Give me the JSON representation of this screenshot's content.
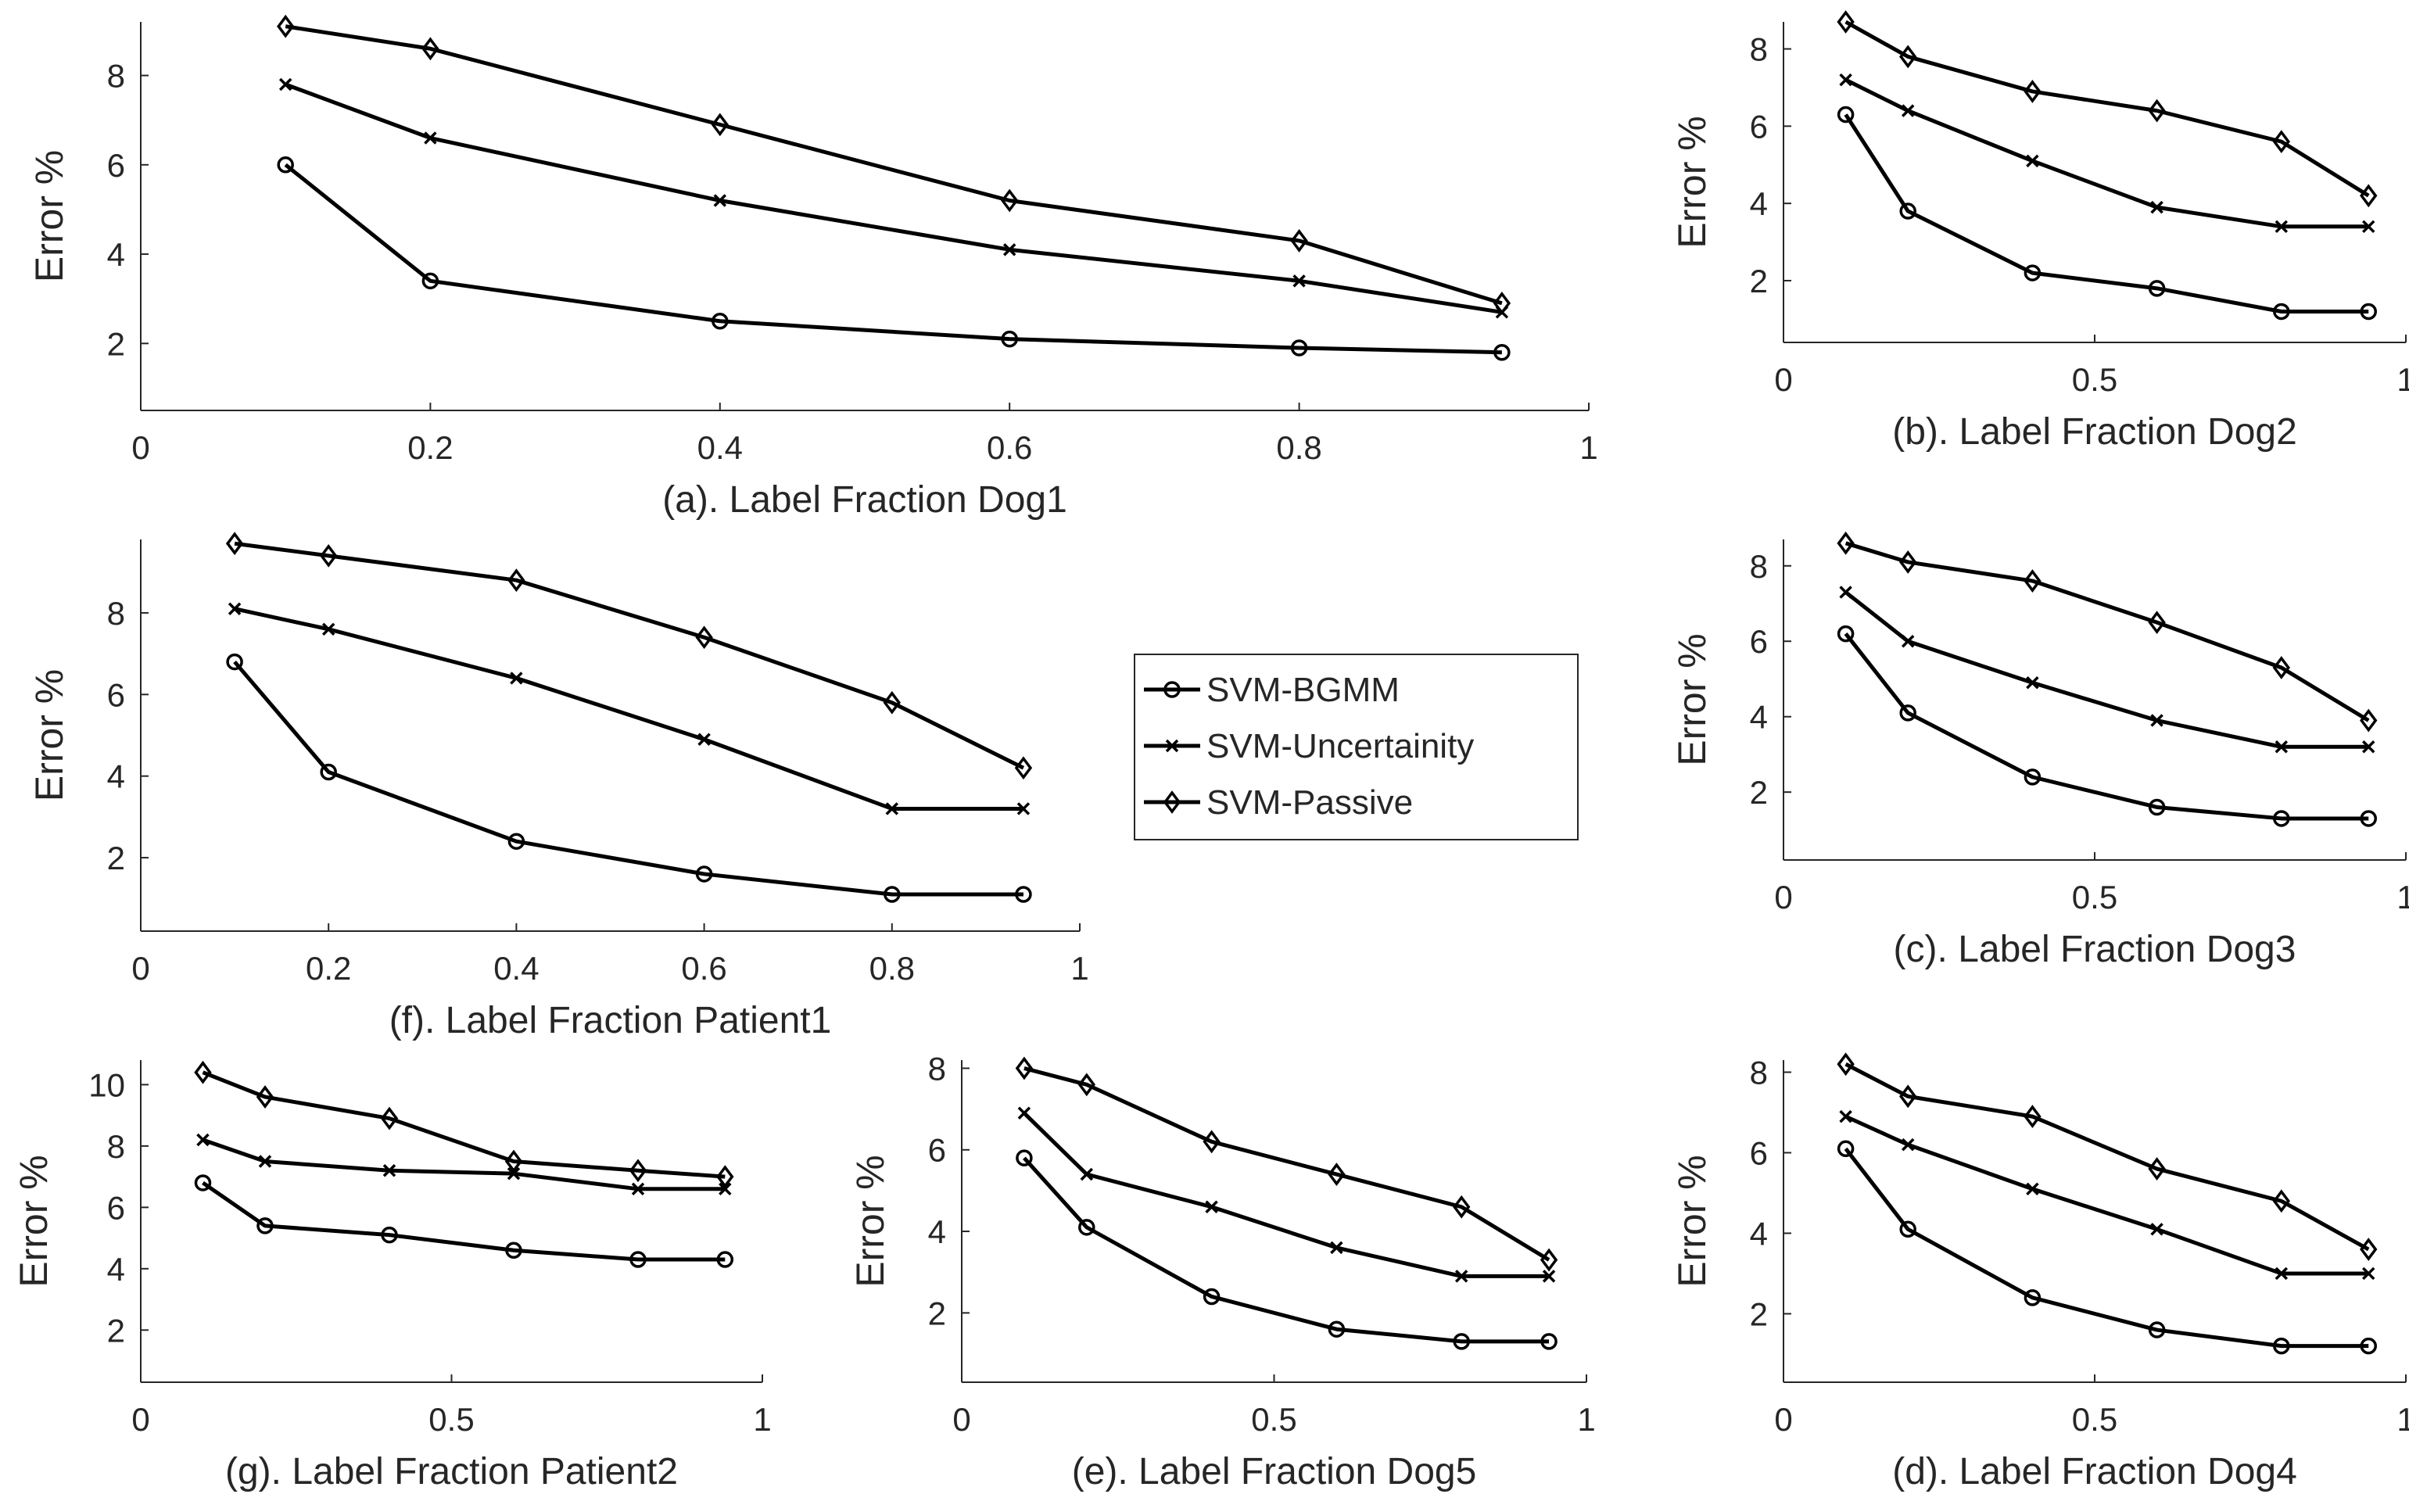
{
  "chart_data": [
    {
      "id": "a",
      "type": "line",
      "xlabel": "(a). Label Fraction Dog1",
      "ylabel": "Error %",
      "xlim": [
        0,
        1
      ],
      "ylim": [
        0.5,
        9.2
      ],
      "xticks": [
        0,
        0.2,
        0.4,
        0.6,
        0.8,
        1
      ],
      "xticklabels": [
        "0",
        "0.2",
        "0.4",
        "0.6",
        "0.8",
        "1"
      ],
      "yticks": [
        2,
        4,
        6,
        8
      ],
      "yticklabels": [
        "2",
        "4",
        "6",
        "8"
      ],
      "x": [
        0.1,
        0.2,
        0.4,
        0.6,
        0.8,
        0.94
      ],
      "series": [
        {
          "name": "SVM-BGMM",
          "marker": "circle",
          "values": [
            6.0,
            3.4,
            2.5,
            2.1,
            1.9,
            1.8
          ]
        },
        {
          "name": "SVM-Uncertainity",
          "marker": "x",
          "values": [
            7.8,
            6.6,
            5.2,
            4.1,
            3.4,
            2.7
          ]
        },
        {
          "name": "SVM-Passive",
          "marker": "diamond",
          "values": [
            9.1,
            8.6,
            6.9,
            5.2,
            4.3,
            2.9
          ]
        }
      ]
    },
    {
      "id": "b",
      "type": "line",
      "xlabel": "(b). Label Fraction Dog2",
      "ylabel": "Error %",
      "xlim": [
        0,
        1
      ],
      "ylim": [
        0.4,
        8.7
      ],
      "xticks": [
        0,
        0.5,
        1
      ],
      "xticklabels": [
        "0",
        "0.5",
        "1"
      ],
      "yticks": [
        2,
        4,
        6,
        8
      ],
      "yticklabels": [
        "2",
        "4",
        "6",
        "8"
      ],
      "x": [
        0.1,
        0.2,
        0.4,
        0.6,
        0.8,
        0.94
      ],
      "series": [
        {
          "name": "SVM-BGMM",
          "marker": "circle",
          "values": [
            6.3,
            3.8,
            2.2,
            1.8,
            1.2,
            1.2
          ]
        },
        {
          "name": "SVM-Uncertainity",
          "marker": "x",
          "values": [
            7.2,
            6.4,
            5.1,
            3.9,
            3.4,
            3.4
          ]
        },
        {
          "name": "SVM-Passive",
          "marker": "diamond",
          "values": [
            8.7,
            7.8,
            6.9,
            6.4,
            5.6,
            4.2
          ]
        }
      ]
    },
    {
      "id": "f",
      "type": "line",
      "xlabel": "(f). Label Fraction Patient1",
      "ylabel": "Error %",
      "xlim": [
        0,
        1
      ],
      "ylim": [
        0.2,
        9.8
      ],
      "xticks": [
        0,
        0.2,
        0.4,
        0.6,
        0.8,
        1
      ],
      "xticklabels": [
        "0",
        "0.2",
        "0.4",
        "0.6",
        "0.8",
        "1"
      ],
      "yticks": [
        2,
        4,
        6,
        8
      ],
      "yticklabels": [
        "2",
        "4",
        "6",
        "8"
      ],
      "x": [
        0.1,
        0.2,
        0.4,
        0.6,
        0.8,
        0.94
      ],
      "series": [
        {
          "name": "SVM-BGMM",
          "marker": "circle",
          "values": [
            6.8,
            4.1,
            2.4,
            1.6,
            1.1,
            1.1
          ]
        },
        {
          "name": "SVM-Uncertainity",
          "marker": "x",
          "values": [
            8.1,
            7.6,
            6.4,
            4.9,
            3.2,
            3.2
          ]
        },
        {
          "name": "SVM-Passive",
          "marker": "diamond",
          "values": [
            9.7,
            9.4,
            8.8,
            7.4,
            5.8,
            4.2
          ]
        }
      ]
    },
    {
      "id": "c",
      "type": "line",
      "xlabel": "(c). Label Fraction Dog3",
      "ylabel": "Error %",
      "xlim": [
        0,
        1
      ],
      "ylim": [
        0.2,
        8.7
      ],
      "xticks": [
        0,
        0.5,
        1
      ],
      "xticklabels": [
        "0",
        "0.5",
        "1"
      ],
      "yticks": [
        2,
        4,
        6,
        8
      ],
      "yticklabels": [
        "2",
        "4",
        "6",
        "8"
      ],
      "x": [
        0.1,
        0.2,
        0.4,
        0.6,
        0.8,
        0.94
      ],
      "series": [
        {
          "name": "SVM-BGMM",
          "marker": "circle",
          "values": [
            6.2,
            4.1,
            2.4,
            1.6,
            1.3,
            1.3
          ]
        },
        {
          "name": "SVM-Uncertainity",
          "marker": "x",
          "values": [
            7.3,
            6.0,
            4.9,
            3.9,
            3.2,
            3.2
          ]
        },
        {
          "name": "SVM-Passive",
          "marker": "diamond",
          "values": [
            8.6,
            8.1,
            7.6,
            6.5,
            5.3,
            3.9
          ]
        }
      ]
    },
    {
      "id": "g",
      "type": "line",
      "xlabel": "(g). Label Fraction Patient2",
      "ylabel": "Error %",
      "xlim": [
        0,
        1
      ],
      "ylim": [
        0.3,
        10.8
      ],
      "xticks": [
        0,
        0.5,
        1
      ],
      "xticklabels": [
        "0",
        "0.5",
        "1"
      ],
      "yticks": [
        2,
        4,
        6,
        8,
        10
      ],
      "yticklabels": [
        "2",
        "4",
        "6",
        "8",
        "10"
      ],
      "x": [
        0.1,
        0.2,
        0.4,
        0.6,
        0.8,
        0.94
      ],
      "series": [
        {
          "name": "SVM-BGMM",
          "marker": "circle",
          "values": [
            6.8,
            5.4,
            5.1,
            4.6,
            4.3,
            4.3
          ]
        },
        {
          "name": "SVM-Uncertainity",
          "marker": "x",
          "values": [
            8.2,
            7.5,
            7.2,
            7.1,
            6.6,
            6.6
          ]
        },
        {
          "name": "SVM-Passive",
          "marker": "diamond",
          "values": [
            10.4,
            9.6,
            8.9,
            7.5,
            7.2,
            7.0
          ]
        }
      ]
    },
    {
      "id": "e",
      "type": "line",
      "xlabel": "(e). Label Fraction Dog5",
      "ylabel": "Error %",
      "xlim": [
        0,
        1
      ],
      "ylim": [
        0.3,
        8.2
      ],
      "xticks": [
        0,
        0.5,
        1
      ],
      "xticklabels": [
        "0",
        "0.5",
        "1"
      ],
      "yticks": [
        2,
        4,
        6,
        8
      ],
      "yticklabels": [
        "2",
        "4",
        "6",
        "8"
      ],
      "x": [
        0.1,
        0.2,
        0.4,
        0.6,
        0.8,
        0.94
      ],
      "series": [
        {
          "name": "SVM-BGMM",
          "marker": "circle",
          "values": [
            5.8,
            4.1,
            2.4,
            1.6,
            1.3,
            1.3
          ]
        },
        {
          "name": "SVM-Uncertainity",
          "marker": "x",
          "values": [
            6.9,
            5.4,
            4.6,
            3.6,
            2.9,
            2.9
          ]
        },
        {
          "name": "SVM-Passive",
          "marker": "diamond",
          "values": [
            8.0,
            7.6,
            6.2,
            5.4,
            4.6,
            3.3
          ]
        }
      ]
    },
    {
      "id": "d",
      "type": "line",
      "xlabel": "(d). Label Fraction Dog4",
      "ylabel": "Error %",
      "xlim": [
        0,
        1
      ],
      "ylim": [
        0.3,
        8.3
      ],
      "xticks": [
        0,
        0.5,
        1
      ],
      "xticklabels": [
        "0",
        "0.5",
        "1"
      ],
      "yticks": [
        2,
        4,
        6,
        8
      ],
      "yticklabels": [
        "2",
        "4",
        "6",
        "8"
      ],
      "x": [
        0.1,
        0.2,
        0.4,
        0.6,
        0.8,
        0.94
      ],
      "series": [
        {
          "name": "SVM-BGMM",
          "marker": "circle",
          "values": [
            6.1,
            4.1,
            2.4,
            1.6,
            1.2,
            1.2
          ]
        },
        {
          "name": "SVM-Uncertainity",
          "marker": "x",
          "values": [
            6.9,
            6.2,
            5.1,
            4.1,
            3.0,
            3.0
          ]
        },
        {
          "name": "SVM-Passive",
          "marker": "diamond",
          "values": [
            8.2,
            7.4,
            6.9,
            5.6,
            4.8,
            3.6
          ]
        }
      ]
    }
  ],
  "legend": {
    "placement": "center",
    "entries": [
      {
        "name": "SVM-BGMM",
        "marker": "circle"
      },
      {
        "name": "SVM-Uncertainity",
        "marker": "x"
      },
      {
        "name": "SVM-Passive",
        "marker": "diamond"
      }
    ]
  },
  "colors": {
    "line": "#000000",
    "axis": "#262626",
    "background": "#ffffff"
  }
}
